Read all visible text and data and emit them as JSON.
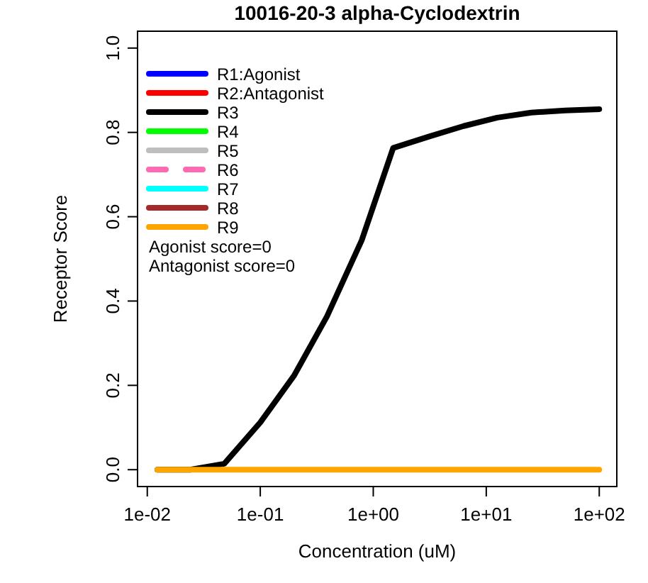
{
  "chart_data": {
    "type": "line",
    "title": "10016-20-3 alpha-Cyclodextrin",
    "xlabel": "Concentration (uM)",
    "ylabel": "Receptor Score",
    "log": "x",
    "x": [
      0.0123,
      0.024,
      0.048,
      0.1,
      0.2,
      0.39,
      0.79,
      1.5,
      3.1,
      6.3,
      12.5,
      25,
      50,
      100
    ],
    "xlim": [
      0.0082,
      143
    ],
    "ylim": [
      -0.04,
      1.04
    ],
    "xticks": [
      {
        "value": 0.01,
        "label": "1e-02"
      },
      {
        "value": 0.1,
        "label": "1e-01"
      },
      {
        "value": 1,
        "label": "1e+00"
      },
      {
        "value": 10,
        "label": "1e+01"
      },
      {
        "value": 100,
        "label": "1e+02"
      }
    ],
    "yticks": [
      {
        "value": 0,
        "label": "0.0"
      },
      {
        "value": 0.2,
        "label": "0.2"
      },
      {
        "value": 0.4,
        "label": "0.4"
      },
      {
        "value": 0.6,
        "label": "0.6"
      },
      {
        "value": 0.8,
        "label": "0.8"
      },
      {
        "value": 1,
        "label": "1.0"
      }
    ],
    "grid": false,
    "legend": "top left",
    "line_style": "solid",
    "annotations": [
      "Agonist score=0",
      "Antagonist score=0"
    ],
    "series": [
      {
        "name": "R1:Agonist",
        "color": "#0000ff",
        "values": [
          null,
          null,
          null,
          null,
          null,
          null,
          null,
          null,
          null,
          null,
          null,
          null,
          null,
          null
        ]
      },
      {
        "name": "R2:Antagonist",
        "color": "#ff0000",
        "values": [
          null,
          null,
          null,
          null,
          null,
          null,
          null,
          null,
          null,
          null,
          null,
          null,
          null,
          null
        ]
      },
      {
        "name": "R3",
        "color": "#000000",
        "values": [
          0,
          0,
          0.014,
          0.112,
          0.224,
          0.364,
          0.544,
          0.763,
          0.79,
          0.815,
          0.835,
          0.847,
          0.852,
          0.855
        ]
      },
      {
        "name": "R4",
        "color": "#00ff00",
        "values": [
          null,
          null,
          null,
          null,
          null,
          null,
          null,
          null,
          null,
          null,
          null,
          null,
          null,
          null
        ]
      },
      {
        "name": "R5",
        "color": "#bebebe",
        "values": [
          null,
          null,
          null,
          null,
          null,
          null,
          null,
          null,
          null,
          null,
          null,
          null,
          null,
          null
        ]
      },
      {
        "name": "R6",
        "color": "#ff69b4",
        "line_style": "dashed",
        "values": [
          null,
          null,
          null,
          null,
          null,
          null,
          null,
          null,
          null,
          null,
          null,
          null,
          null,
          null
        ]
      },
      {
        "name": "R7",
        "color": "#00ffff",
        "values": [
          null,
          null,
          null,
          null,
          null,
          null,
          null,
          null,
          null,
          null,
          null,
          null,
          null,
          null
        ]
      },
      {
        "name": "R8",
        "color": "#a52a2a",
        "values": [
          null,
          null,
          null,
          null,
          null,
          null,
          null,
          null,
          null,
          null,
          null,
          null,
          null,
          null
        ]
      },
      {
        "name": "R9",
        "color": "#ffa500",
        "values": [
          0,
          0,
          0,
          0,
          0,
          0,
          0,
          0,
          0,
          0,
          0,
          0,
          0,
          0
        ]
      }
    ]
  }
}
